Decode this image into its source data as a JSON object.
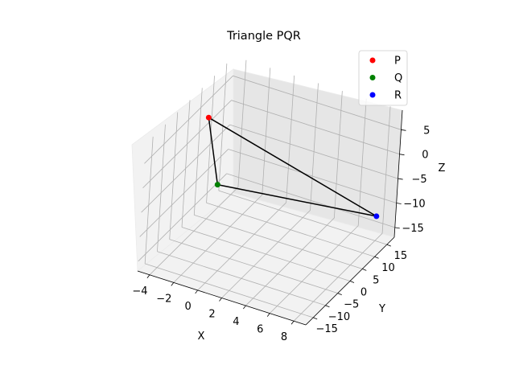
{
  "chart_data": {
    "type": "scatter",
    "title": "Triangle PQR",
    "xlabel": "X",
    "ylabel": "Y",
    "zlabel": "Z",
    "xlim": [
      -5,
      9
    ],
    "ylim": [
      -18,
      18
    ],
    "zlim": [
      -17,
      9
    ],
    "xticks": [
      "−4",
      "−2",
      "0",
      "2",
      "4",
      "6",
      "8"
    ],
    "yticks": [
      "−15",
      "−10",
      "−5",
      "0",
      "5",
      "10",
      "15"
    ],
    "zticks": [
      "−15",
      "−10",
      "−5",
      "0",
      "5"
    ],
    "grid": true,
    "legend_position": "top-right",
    "series": [
      {
        "name": "P",
        "color": "#ff0000",
        "point": {
          "x": -3,
          "y": -2,
          "z": 8
        }
      },
      {
        "name": "Q",
        "color": "#008000",
        "point": {
          "x": -4,
          "y": 9,
          "z": -12
        }
      },
      {
        "name": "R",
        "color": "#0000ff",
        "point": {
          "x": 8,
          "y": 15,
          "z": -12
        }
      }
    ],
    "edges": [
      [
        "P",
        "Q"
      ],
      [
        "Q",
        "R"
      ],
      [
        "R",
        "P"
      ]
    ],
    "edge_color": "#000000"
  }
}
